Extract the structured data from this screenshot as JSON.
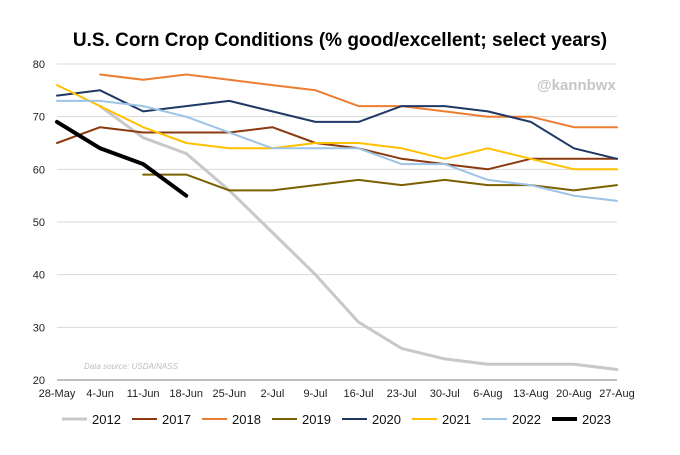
{
  "chart_data": {
    "type": "line",
    "title": "U.S. Corn Crop Conditions (% good/excellent; select years)",
    "watermark": "@kannbwx",
    "source_note": "Data source: USDA/NASS",
    "xlabel": "",
    "ylabel": "",
    "ylim": [
      20,
      80
    ],
    "yticks": [
      20,
      30,
      40,
      50,
      60,
      70,
      80
    ],
    "grid": "horizontal",
    "legend_position": "bottom",
    "categories": [
      "28-May",
      "4-Jun",
      "11-Jun",
      "18-Jun",
      "25-Jun",
      "2-Jul",
      "9-Jul",
      "16-Jul",
      "23-Jul",
      "30-Jul",
      "6-Aug",
      "13-Aug",
      "20-Aug",
      "27-Aug"
    ],
    "series": [
      {
        "name": "2012",
        "color": "#c8c8c8",
        "width": 3,
        "values": [
          null,
          72,
          66,
          63,
          56,
          48,
          40,
          31,
          26,
          24,
          23,
          23,
          23,
          22
        ]
      },
      {
        "name": "2017",
        "color": "#8b3a0f",
        "width": 2,
        "values": [
          65,
          68,
          67,
          67,
          67,
          68,
          65,
          64,
          62,
          61,
          60,
          62,
          62,
          62
        ]
      },
      {
        "name": "2018",
        "color": "#ed7d31",
        "width": 2,
        "values": [
          null,
          78,
          77,
          78,
          77,
          76,
          75,
          72,
          72,
          71,
          70,
          70,
          68,
          68
        ]
      },
      {
        "name": "2019",
        "color": "#7a6000",
        "width": 2,
        "values": [
          null,
          null,
          59,
          59,
          56,
          56,
          57,
          58,
          57,
          58,
          57,
          57,
          56,
          57
        ]
      },
      {
        "name": "2020",
        "color": "#1f3864",
        "width": 2,
        "values": [
          74,
          75,
          71,
          72,
          73,
          71,
          69,
          69,
          72,
          72,
          71,
          69,
          64,
          62
        ]
      },
      {
        "name": "2021",
        "color": "#ffc000",
        "width": 2,
        "values": [
          76,
          72,
          68,
          65,
          64,
          64,
          65,
          65,
          64,
          62,
          64,
          62,
          60,
          60
        ]
      },
      {
        "name": "2022",
        "color": "#9dc3e6",
        "width": 2,
        "values": [
          73,
          73,
          72,
          70,
          67,
          64,
          64,
          64,
          61,
          61,
          58,
          57,
          55,
          54
        ]
      },
      {
        "name": "2023",
        "color": "#000000",
        "width": 4,
        "values": [
          69,
          64,
          61,
          55,
          null,
          null,
          null,
          null,
          null,
          null,
          null,
          null,
          null,
          null
        ]
      }
    ]
  }
}
